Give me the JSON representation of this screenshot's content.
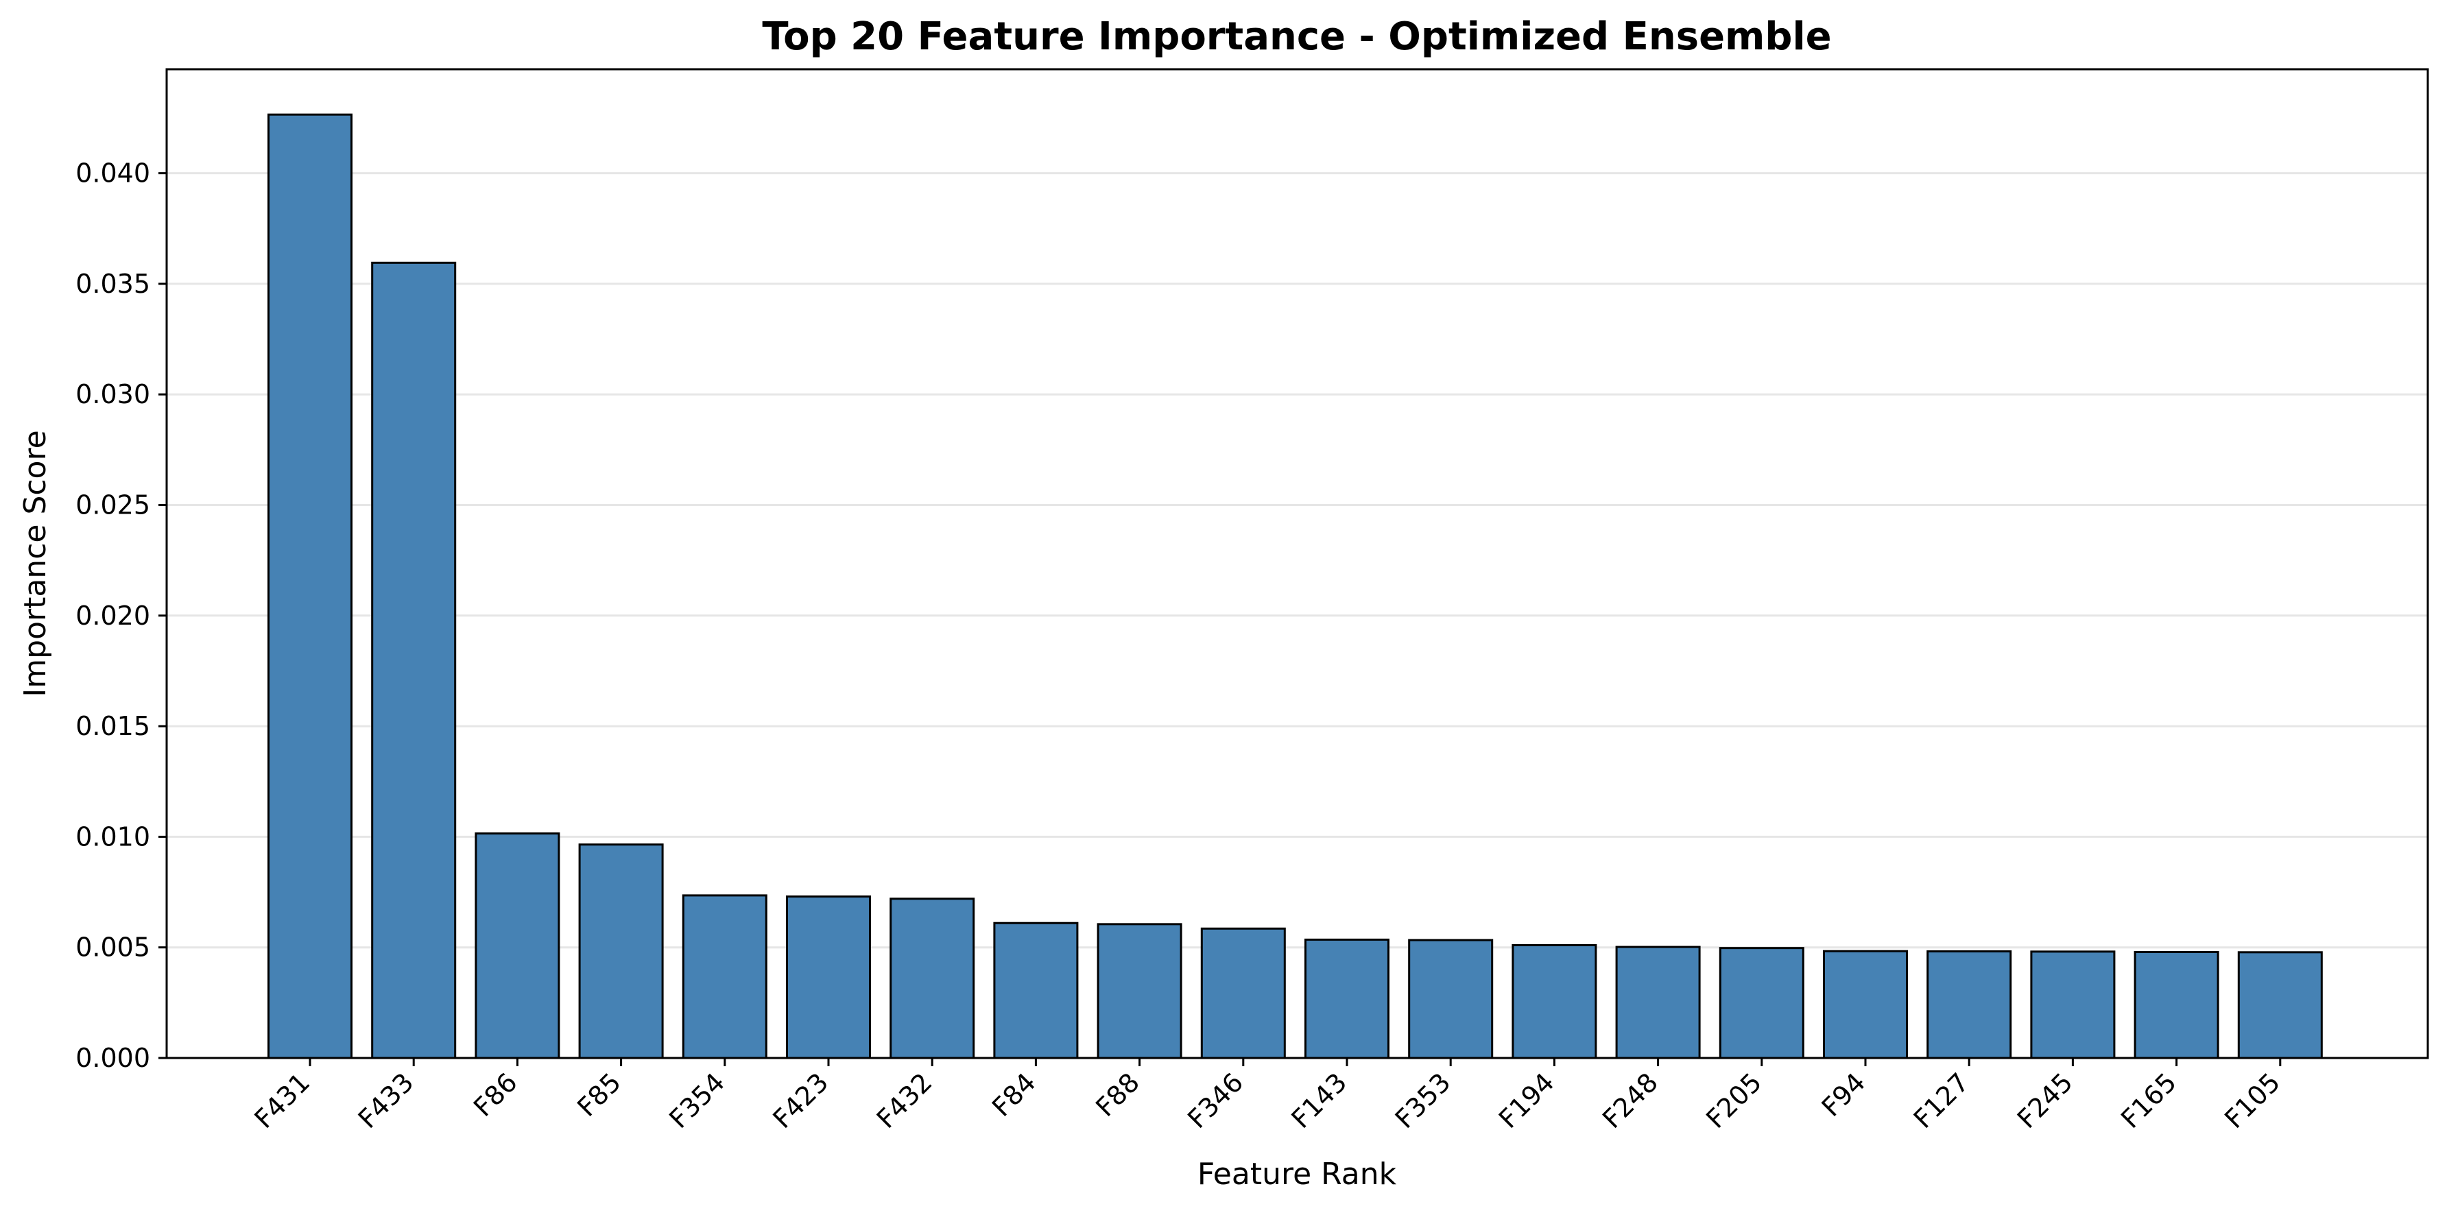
{
  "chart_data": {
    "type": "bar",
    "title": "Top 20 Feature Importance - Optimized Ensemble",
    "xlabel": "Feature Rank",
    "ylabel": "Importance Score",
    "categories": [
      "F431",
      "F433",
      "F86",
      "F85",
      "F354",
      "F423",
      "F432",
      "F84",
      "F88",
      "F346",
      "F143",
      "F353",
      "F194",
      "F248",
      "F205",
      "F94",
      "F127",
      "F245",
      "F165",
      "F105"
    ],
    "values": [
      0.04265,
      0.03595,
      0.01015,
      0.00965,
      0.00735,
      0.0073,
      0.0072,
      0.0061,
      0.00605,
      0.00585,
      0.00535,
      0.00533,
      0.0051,
      0.00502,
      0.00497,
      0.00483,
      0.00482,
      0.00481,
      0.00479,
      0.00478
    ],
    "ylim": [
      0,
      0.0447
    ],
    "yticks": [
      "0.000",
      "0.005",
      "0.010",
      "0.015",
      "0.020",
      "0.025",
      "0.030",
      "0.035",
      "0.040"
    ],
    "ytick_values": [
      0,
      0.005,
      0.01,
      0.015,
      0.02,
      0.025,
      0.03,
      0.035,
      0.04
    ],
    "grid": "y",
    "legend": "none",
    "bar_color": "#4682b4",
    "bar_edge_color": "#000000",
    "grid_color": "#e6e6e6"
  }
}
